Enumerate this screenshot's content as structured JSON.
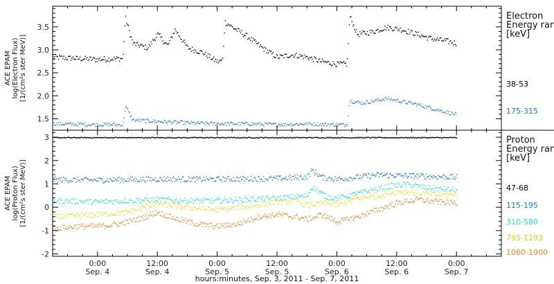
{
  "chart_data": {
    "type": "scatter",
    "xlabel": "hours:minutes, Sep. 3, 2011 - Sep. 7, 2011",
    "x_ticks": [
      {
        "time": "0:00",
        "date": "Sep. 4"
      },
      {
        "time": "12:00",
        "date": "Sep. 4"
      },
      {
        "time": "0:00",
        "date": "Sep. 5"
      },
      {
        "time": "12:00",
        "date": "Sep. 5"
      },
      {
        "time": "0:00",
        "date": "Sep. 6"
      },
      {
        "time": "12:00",
        "date": "Sep. 6"
      },
      {
        "time": "0:00",
        "date": "Sep. 7"
      }
    ],
    "xlim_hours": [
      -9,
      81
    ],
    "panels": [
      {
        "name": "electron",
        "ylabel_lines": [
          "ACE EPAM",
          "log(Electron Flux)",
          "[1/(cm²s ster MeV)]"
        ],
        "ylim": [
          1.25,
          3.95
        ],
        "y_ticks": [
          "1.5",
          "2.0",
          "2.5",
          "3.0",
          "3.5"
        ],
        "legend_title": [
          "Electron",
          "Energy ranges",
          "[keV]"
        ],
        "series": [
          {
            "name": "38-53",
            "color": "#000000",
            "x": [
              -9,
              -4,
              0,
              4,
              5,
              5.5,
              7,
              10,
              12,
              14,
              15.5,
              18,
              21,
              24,
              25,
              25.5,
              27,
              30,
              33,
              36,
              39,
              42,
              45,
              48,
              50,
              50.5,
              52,
              55,
              58,
              61,
              64,
              67,
              70,
              72
            ],
            "y": [
              2.85,
              2.82,
              2.8,
              2.82,
              2.82,
              3.72,
              3.15,
              3.05,
              3.35,
              3.1,
              3.45,
              3.05,
              2.95,
              2.75,
              2.78,
              3.62,
              3.5,
              3.3,
              3.05,
              2.85,
              2.9,
              2.85,
              2.75,
              2.7,
              2.7,
              3.75,
              3.35,
              3.4,
              3.5,
              3.45,
              3.35,
              3.25,
              3.2,
              3.15
            ]
          },
          {
            "name": "175-315",
            "color": "#1e78c8",
            "x": [
              -9,
              0,
              4,
              5,
              5.5,
              7,
              12,
              18,
              24,
              30,
              36,
              42,
              48,
              50,
              50.5,
              53,
              58,
              64,
              70,
              72
            ],
            "y": [
              1.4,
              1.38,
              1.38,
              1.38,
              1.78,
              1.48,
              1.45,
              1.42,
              1.4,
              1.4,
              1.38,
              1.4,
              1.38,
              1.38,
              1.9,
              1.85,
              1.95,
              1.82,
              1.65,
              1.6
            ]
          }
        ]
      },
      {
        "name": "proton",
        "ylabel_lines": [
          "ACE EPAM",
          "log(Proton Flux)",
          "[1/(cm²s ster MeV)]"
        ],
        "ylim": [
          -2.1,
          3.3
        ],
        "y_ticks": [
          "-2",
          "-1",
          "0",
          "1",
          "2",
          "3"
        ],
        "legend_title": [
          "Proton",
          "Energy ranges",
          "[keV]"
        ],
        "series": [
          {
            "name": "47-68",
            "color": "#000000",
            "x": [
              -9,
              72
            ],
            "y": [
              3.0,
              3.0
            ]
          },
          {
            "name": "115-195",
            "color": "#1e78c8",
            "x": [
              -9,
              0,
              12,
              24,
              36,
              42,
              43,
              45,
              48,
              56,
              60,
              66,
              72
            ],
            "y": [
              1.2,
              1.18,
              1.22,
              1.22,
              1.25,
              1.32,
              1.6,
              1.3,
              1.22,
              1.4,
              1.38,
              1.35,
              1.3
            ]
          },
          {
            "name": "310-580",
            "color": "#22e0d0",
            "x": [
              -9,
              0,
              6,
              12,
              18,
              24,
              30,
              36,
              42,
              43,
              46,
              48,
              54,
              58,
              62,
              66,
              72
            ],
            "y": [
              0.3,
              0.25,
              0.3,
              0.35,
              0.3,
              0.3,
              0.35,
              0.4,
              0.5,
              0.9,
              0.45,
              0.4,
              0.7,
              0.9,
              1.0,
              0.85,
              0.75
            ]
          },
          {
            "name": "795-1193",
            "color": "#e0e020",
            "x": [
              -9,
              0,
              6,
              12,
              18,
              24,
              28,
              32,
              36,
              40,
              42,
              45,
              48,
              52,
              56,
              60,
              64,
              68,
              72
            ],
            "y": [
              -0.4,
              -0.3,
              -0.2,
              0.2,
              0.0,
              -0.1,
              0.0,
              0.1,
              0.25,
              0.3,
              0.1,
              0.2,
              0.1,
              0.4,
              0.5,
              0.7,
              0.65,
              0.55,
              0.55
            ]
          },
          {
            "name": "1060-1900",
            "color": "#e8821e",
            "x": [
              -9,
              -4,
              0,
              4,
              8,
              12,
              16,
              20,
              24,
              28,
              32,
              36,
              40,
              42,
              45,
              48,
              52,
              56,
              60,
              64,
              68,
              72
            ],
            "y": [
              -0.9,
              -0.8,
              -0.8,
              -0.7,
              -0.5,
              -0.2,
              -0.5,
              -0.7,
              -0.8,
              -0.7,
              -0.4,
              -0.3,
              -0.4,
              -0.5,
              -0.3,
              -0.6,
              -0.4,
              -0.1,
              0.2,
              0.35,
              0.25,
              0.2
            ]
          }
        ]
      }
    ]
  }
}
